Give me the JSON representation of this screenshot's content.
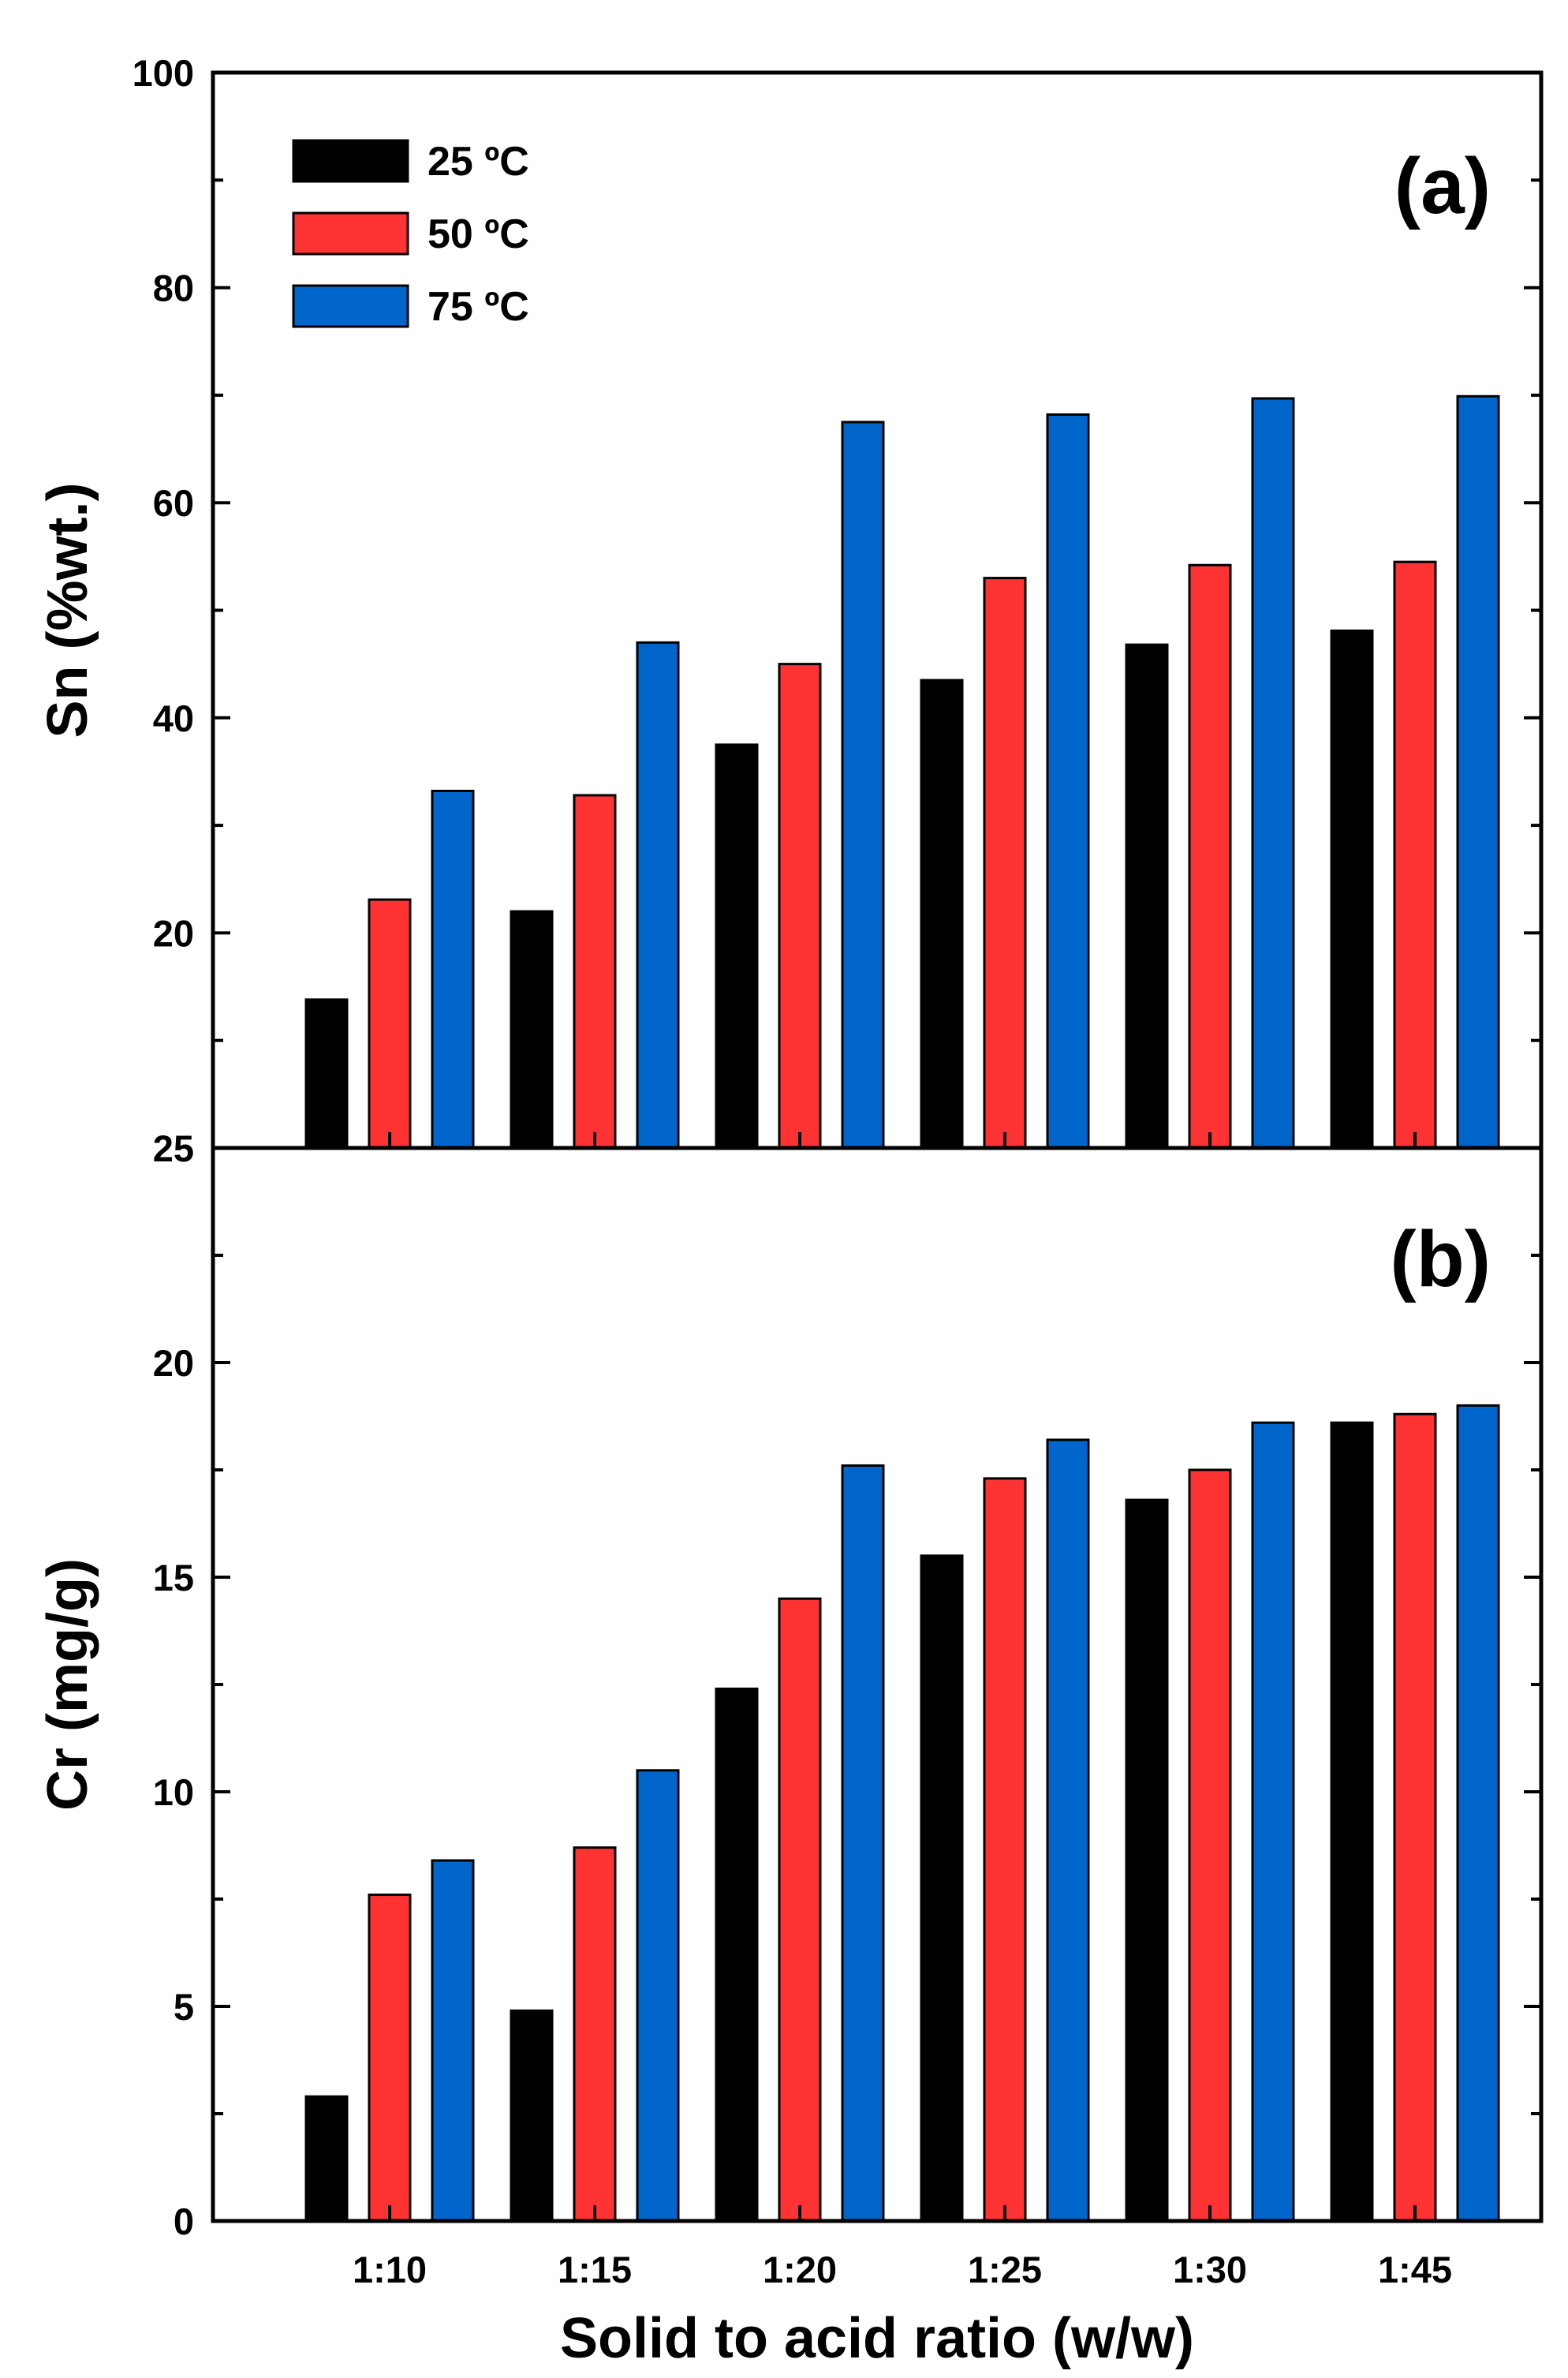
{
  "chart_data": [
    {
      "type": "bar",
      "panel": "(a)",
      "ylabel": "Sn (%wt.)",
      "xlabel": "Solid to acid ratio (w/w)",
      "ylim": [
        0,
        100
      ],
      "yticks": [
        0,
        20,
        40,
        60,
        80,
        100
      ],
      "ytick_labels": [
        "20",
        "40",
        "60",
        "80",
        "100"
      ],
      "categories": [
        "1:10",
        "1:15",
        "1:20",
        "1:25",
        "1:30",
        "1:45"
      ],
      "legend_position": "top-left",
      "series": [
        {
          "name": "25 ºC",
          "color": "#000000",
          "values": [
            13.8,
            22.0,
            37.5,
            43.5,
            46.8,
            48.1
          ]
        },
        {
          "name": "50 ºC",
          "color": "#ff3333",
          "values": [
            23.1,
            32.8,
            45.0,
            53.0,
            54.2,
            54.5
          ]
        },
        {
          "name": "75 ºC",
          "color": "#0066cc",
          "values": [
            33.2,
            47.0,
            67.5,
            68.2,
            69.7,
            69.9
          ]
        }
      ]
    },
    {
      "type": "bar",
      "panel": "(b)",
      "ylabel": "Cr (mg/g)",
      "xlabel": "Solid to acid ratio (w/w)",
      "ylim": [
        0,
        25
      ],
      "yticks": [
        0,
        5,
        10,
        15,
        20,
        25
      ],
      "ytick_labels": [
        "0",
        "5",
        "10",
        "15",
        "20",
        "25"
      ],
      "categories": [
        "1:10",
        "1:15",
        "1:20",
        "1:25",
        "1:30",
        "1:45"
      ],
      "series": [
        {
          "name": "25 ºC",
          "color": "#000000",
          "values": [
            2.9,
            4.9,
            12.4,
            15.5,
            16.8,
            18.6
          ]
        },
        {
          "name": "50 ºC",
          "color": "#ff3333",
          "values": [
            7.6,
            8.7,
            14.5,
            17.3,
            17.5,
            18.8
          ]
        },
        {
          "name": "75 ºC",
          "color": "#0066cc",
          "values": [
            8.4,
            10.5,
            17.6,
            18.2,
            18.6,
            19.0
          ]
        }
      ]
    }
  ],
  "xlabel": "Solid to acid ratio (w/w)",
  "categories": [
    "1:10",
    "1:15",
    "1:20",
    "1:25",
    "1:30",
    "1:45"
  ]
}
